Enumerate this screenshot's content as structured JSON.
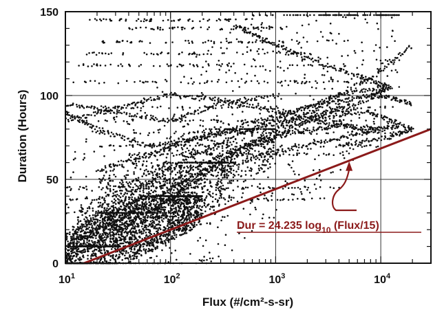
{
  "chart_data": {
    "type": "scatter",
    "title": "",
    "xlabel": "Flux   (#/cm²-s-sr)",
    "ylabel": "Duration  (Hours)",
    "x_scale": "log",
    "xlim": [
      10,
      30000
    ],
    "ylim": [
      0,
      150
    ],
    "x_ticks": [
      {
        "value": 10,
        "base": "10",
        "exp": "1"
      },
      {
        "value": 100,
        "base": "10",
        "exp": "2"
      },
      {
        "value": 1000,
        "base": "10",
        "exp": "3"
      },
      {
        "value": 10000,
        "base": "10",
        "exp": "4"
      }
    ],
    "y_ticks": [
      {
        "value": 0,
        "label": "0"
      },
      {
        "value": 50,
        "label": "50"
      },
      {
        "value": 100,
        "label": "100"
      },
      {
        "value": 150,
        "label": "150"
      }
    ],
    "grid": true,
    "point_color": "#111111",
    "fit_line": {
      "equation": "Dur = 24.235 log10 (Flux/15)",
      "coefficient": 24.235,
      "reference_flux": 15,
      "x_range": [
        15,
        30000
      ],
      "color": "#8b1a1a"
    },
    "annotation": {
      "label_parts": [
        "Dur = 24.235 log",
        "10",
        " (Flux/15)"
      ],
      "color": "#8b1a1a",
      "arrow_target": {
        "x": 5000,
        "y": 60
      }
    },
    "point_clusters": [
      {
        "x_range": [
          10,
          200
        ],
        "y_range": [
          0,
          40
        ],
        "count": 1800
      },
      {
        "x_range": [
          12,
          400
        ],
        "y_range": [
          10,
          60
        ],
        "count": 900
      },
      {
        "x_range": [
          20,
          1000
        ],
        "y_range": [
          30,
          80
        ],
        "count": 700
      },
      {
        "x_range": [
          10,
          15000
        ],
        "y_range": [
          0,
          148
        ],
        "count": 900
      }
    ],
    "point_tracks": [
      {
        "x": [
          10,
          60,
          300,
          1000,
          3000,
          8000,
          12000,
          6000,
          2000,
          800,
          400
        ],
        "y": [
          5,
          30,
          60,
          80,
          95,
          100,
          105,
          112,
          122,
          133,
          142
        ]
      },
      {
        "x": [
          10,
          80,
          500,
          2000,
          8000,
          20000,
          12000,
          4000
        ],
        "y": [
          8,
          40,
          70,
          85,
          90,
          80,
          75,
          70
        ]
      },
      {
        "x": [
          10,
          30,
          100,
          300,
          1000,
          3000,
          10000,
          20000
        ],
        "y": [
          10,
          25,
          45,
          60,
          75,
          90,
          100,
          95
        ]
      },
      {
        "x": [
          15,
          40,
          150,
          500,
          1500,
          4000,
          10000
        ],
        "y": [
          15,
          35,
          55,
          70,
          78,
          82,
          80
        ]
      },
      {
        "x": [
          12,
          40,
          120,
          400,
          1200,
          4000,
          12000
        ],
        "y": [
          20,
          40,
          60,
          75,
          88,
          100,
          106
        ]
      },
      {
        "x": [
          10,
          20,
          60,
          200,
          600,
          2000,
          6000
        ],
        "y": [
          90,
          80,
          70,
          75,
          80,
          88,
          92
        ]
      },
      {
        "x": [
          10,
          30,
          100,
          300,
          1000
        ],
        "y": [
          95,
          90,
          85,
          95,
          100
        ]
      },
      {
        "x": [
          20,
          60,
          200,
          700,
          2500,
          8000,
          20000
        ],
        "y": [
          55,
          65,
          75,
          85,
          95,
          110,
          130
        ]
      },
      {
        "x": [
          10,
          25,
          80,
          250,
          800,
          2500,
          7000,
          15000
        ],
        "y": [
          2,
          15,
          35,
          55,
          65,
          72,
          78,
          82
        ]
      },
      {
        "x": [
          10,
          30,
          90,
          270,
          800,
          2400,
          7000
        ],
        "y": [
          85,
          92,
          100,
          98,
          92,
          85,
          80
        ]
      }
    ],
    "point_rows": [
      {
        "y": 145,
        "x_range": [
          15,
          600
        ]
      },
      {
        "y": 140,
        "x_range": [
          40,
          1200
        ]
      },
      {
        "y": 132,
        "x_range": [
          20,
          2000
        ]
      },
      {
        "y": 125,
        "x_range": [
          15,
          3000
        ]
      },
      {
        "y": 118,
        "x_range": [
          12,
          5000
        ]
      },
      {
        "y": 108,
        "x_range": [
          10,
          8000
        ]
      },
      {
        "y": 93,
        "x_range": [
          10,
          15000
        ]
      },
      {
        "y": 85,
        "x_range": [
          10,
          15000
        ]
      },
      {
        "y": 78,
        "x_range": [
          15,
          20000
        ]
      },
      {
        "y": 70,
        "x_range": [
          20,
          10000
        ]
      },
      {
        "y": 65,
        "x_range": [
          30,
          5000
        ]
      },
      {
        "y": 45,
        "x_range": [
          10,
          5000
        ]
      },
      {
        "y": 38,
        "x_range": [
          10,
          3000
        ]
      }
    ]
  }
}
